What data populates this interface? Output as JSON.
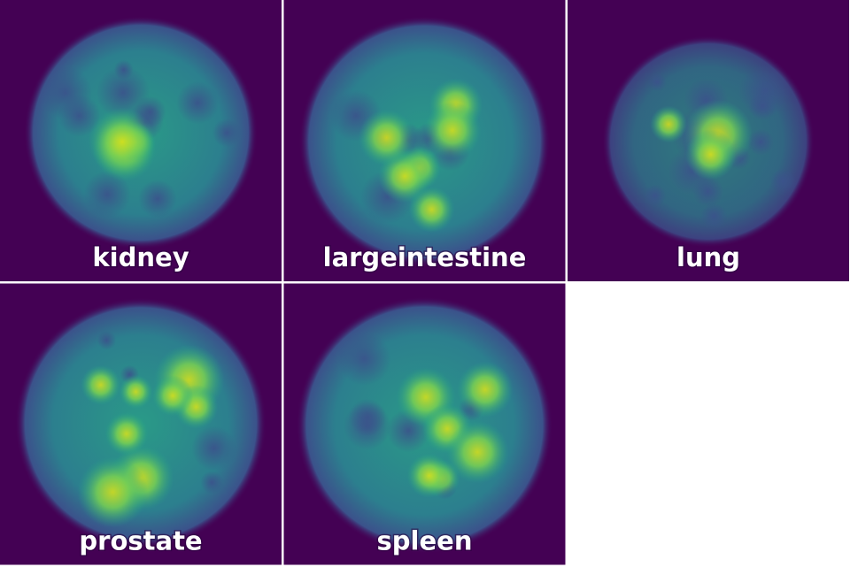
{
  "panels": [
    {
      "label": "kidney"
    },
    {
      "label": "largeintestine"
    },
    {
      "label": "lung"
    },
    {
      "label": "prostate"
    },
    {
      "label": "spleen"
    }
  ]
}
